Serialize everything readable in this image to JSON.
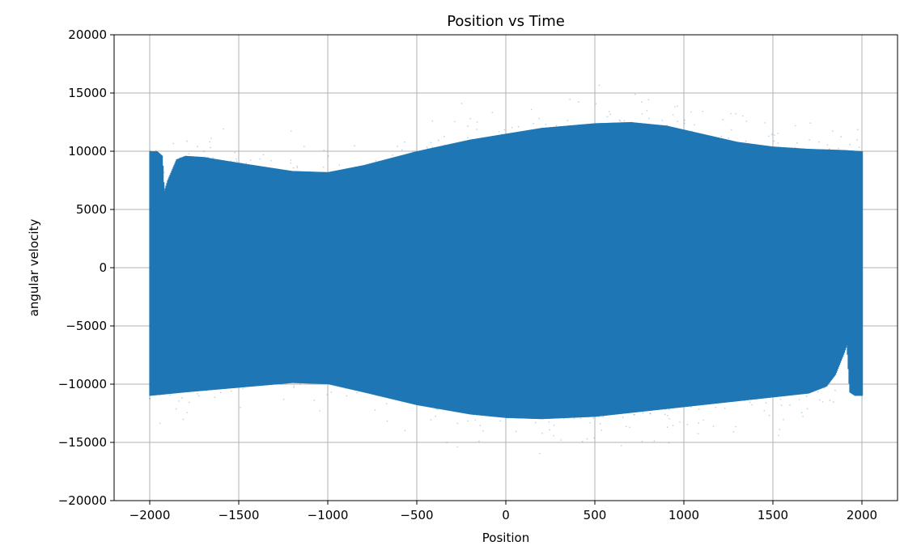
{
  "chart_data": {
    "type": "scatter",
    "title": "Position vs Time",
    "xlabel": "Position",
    "ylabel": "angular velocity",
    "xlim": [
      -2200,
      2200
    ],
    "ylim": [
      -20000,
      20000
    ],
    "xticks": [
      -2000,
      -1500,
      -1000,
      -500,
      0,
      500,
      1000,
      1500,
      2000
    ],
    "xtick_labels": [
      "−2000",
      "−1500",
      "−1000",
      "−500",
      "0",
      "500",
      "1000",
      "1500",
      "2000"
    ],
    "yticks": [
      -20000,
      -15000,
      -10000,
      -5000,
      0,
      5000,
      10000,
      15000,
      20000
    ],
    "ytick_labels": [
      "−20000",
      "−15000",
      "−10000",
      "−5000",
      "0",
      "5000",
      "10000",
      "15000",
      "20000"
    ],
    "grid": true,
    "series": [
      {
        "color": "#1f77b4",
        "upper_envelope": {
          "x": [
            -2000,
            -1960,
            -1930,
            -1920,
            -1900,
            -1850,
            -1800,
            -1700,
            -1500,
            -1200,
            -1000,
            -800,
            -500,
            -200,
            0,
            200,
            500,
            700,
            900,
            1100,
            1300,
            1500,
            1700,
            1900,
            2000
          ],
          "y": [
            10000,
            10000,
            9600,
            6500,
            7500,
            9300,
            9600,
            9500,
            9000,
            8300,
            8200,
            8800,
            10000,
            11000,
            11500,
            12000,
            12400,
            12500,
            12200,
            11500,
            10800,
            10400,
            10200,
            10100,
            10000
          ]
        },
        "lower_envelope": {
          "x": [
            -2000,
            -1800,
            -1500,
            -1200,
            -1000,
            -800,
            -500,
            -200,
            0,
            200,
            500,
            800,
            1100,
            1400,
            1700,
            1800,
            1850,
            1900,
            1915,
            1930,
            1960,
            2000
          ],
          "y": [
            -11000,
            -10700,
            -10300,
            -9900,
            -10000,
            -10700,
            -11800,
            -12600,
            -12900,
            -13000,
            -12800,
            -12300,
            -11800,
            -11300,
            -10800,
            -10200,
            -9200,
            -7300,
            -6600,
            -10700,
            -11000,
            -11000
          ]
        }
      }
    ]
  }
}
